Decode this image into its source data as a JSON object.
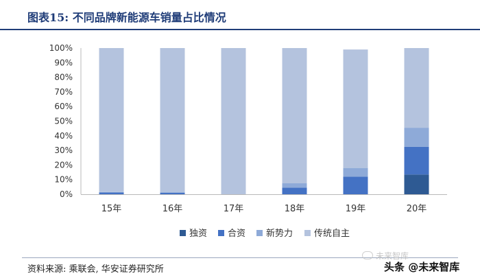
{
  "header": {
    "title": "图表15: 不同品牌新能源车销量占比情况"
  },
  "footer": {
    "source": "资料来源: 乘联会, 华安证券研究所",
    "watermark": "未来智库",
    "attribution": "头条 @未来智库"
  },
  "chart_data": {
    "type": "bar",
    "stacked": true,
    "categories": [
      "15年",
      "16年",
      "17年",
      "18年",
      "19年",
      "20年"
    ],
    "series": [
      {
        "name": "独资",
        "color": "#2e5a93",
        "values": [
          0.0,
          0.0,
          0.0,
          0.0,
          0.0,
          13.5
        ]
      },
      {
        "name": "合资",
        "color": "#4472c4",
        "values": [
          1.2,
          1.0,
          0.0,
          4.5,
          12.0,
          19.0
        ]
      },
      {
        "name": "新势力",
        "color": "#8eaad8",
        "values": [
          0.3,
          0.4,
          0.0,
          3.0,
          6.0,
          13.0
        ]
      },
      {
        "name": "传统自主",
        "color": "#b4c3de",
        "values": [
          98.5,
          98.6,
          100.0,
          92.5,
          81.0,
          54.5
        ]
      }
    ],
    "ylim": [
      0,
      100
    ],
    "yticks": [
      "0%",
      "10%",
      "20%",
      "30%",
      "40%",
      "50%",
      "60%",
      "70%",
      "80%",
      "90%",
      "100%"
    ],
    "legend_position": "bottom",
    "grid": false
  }
}
